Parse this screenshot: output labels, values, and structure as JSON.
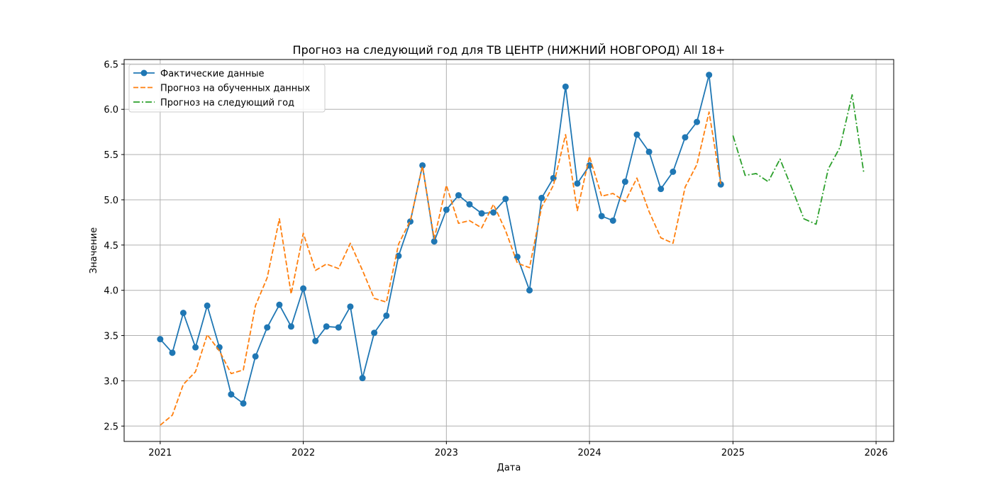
{
  "chart_data": {
    "type": "line",
    "title": "Прогноз на следующий год для ТВ ЦЕНТР (НИЖНИЙ НОВГОРОД) All 18+",
    "xlabel": "Дата",
    "ylabel": "Значение",
    "xlim": [
      "2020-10-01",
      "2026-02-15"
    ],
    "ylim": [
      2.33,
      6.55
    ],
    "x_ticks": [
      "2021-01-01",
      "2022-01-01",
      "2023-01-01",
      "2024-01-01",
      "2025-01-01",
      "2026-01-01"
    ],
    "x_tick_labels": [
      "2021",
      "2022",
      "2023",
      "2024",
      "2025",
      "2026"
    ],
    "y_ticks": [
      2.5,
      3.0,
      3.5,
      4.0,
      4.5,
      5.0,
      5.5,
      6.0,
      6.5
    ],
    "y_tick_labels": [
      "2.5",
      "3.0",
      "3.5",
      "4.0",
      "4.5",
      "5.0",
      "5.5",
      "6.0",
      "6.5"
    ],
    "grid": true,
    "legend_position": "top-left",
    "series": [
      {
        "name": "Фактические данные",
        "color": "#1f77b4",
        "style": "solid-markers",
        "x": [
          "2021-01",
          "2021-02",
          "2021-03",
          "2021-04",
          "2021-05",
          "2021-06",
          "2021-07",
          "2021-08",
          "2021-09",
          "2021-10",
          "2021-11",
          "2021-12",
          "2022-01",
          "2022-02",
          "2022-03",
          "2022-04",
          "2022-05",
          "2022-06",
          "2022-07",
          "2022-08",
          "2022-09",
          "2022-10",
          "2022-11",
          "2022-12",
          "2023-01",
          "2023-02",
          "2023-03",
          "2023-04",
          "2023-05",
          "2023-06",
          "2023-07",
          "2023-08",
          "2023-09",
          "2023-10",
          "2023-11",
          "2023-12",
          "2024-01",
          "2024-02",
          "2024-03",
          "2024-04",
          "2024-05",
          "2024-06",
          "2024-07",
          "2024-08",
          "2024-09",
          "2024-10",
          "2024-11",
          "2024-12"
        ],
        "values": [
          3.46,
          3.31,
          3.75,
          3.37,
          3.83,
          3.37,
          2.85,
          2.75,
          3.27,
          3.59,
          3.84,
          3.6,
          4.02,
          3.44,
          3.6,
          3.59,
          3.82,
          3.03,
          3.53,
          3.72,
          4.38,
          4.76,
          5.38,
          4.54,
          4.89,
          5.05,
          4.95,
          4.85,
          4.86,
          5.01,
          4.37,
          4.0,
          5.02,
          5.24,
          6.25,
          5.18,
          5.38,
          4.82,
          4.77,
          5.2,
          5.72,
          5.53,
          5.12,
          5.31,
          5.69,
          5.86,
          6.38,
          5.17
        ]
      },
      {
        "name": "Прогноз на обученных данных",
        "color": "#ff7f0e",
        "style": "dashed",
        "x": [
          "2021-01",
          "2021-02",
          "2021-03",
          "2021-04",
          "2021-05",
          "2021-06",
          "2021-07",
          "2021-08",
          "2021-09",
          "2021-10",
          "2021-11",
          "2021-12",
          "2022-01",
          "2022-02",
          "2022-03",
          "2022-04",
          "2022-05",
          "2022-06",
          "2022-07",
          "2022-08",
          "2022-09",
          "2022-10",
          "2022-11",
          "2022-12",
          "2023-01",
          "2023-02",
          "2023-03",
          "2023-04",
          "2023-05",
          "2023-06",
          "2023-07",
          "2023-08",
          "2023-09",
          "2023-10",
          "2023-11",
          "2023-12",
          "2024-01",
          "2024-02",
          "2024-03",
          "2024-04",
          "2024-05",
          "2024-06",
          "2024-07",
          "2024-08",
          "2024-09",
          "2024-10",
          "2024-11",
          "2024-12"
        ],
        "values": [
          2.51,
          2.62,
          2.96,
          3.1,
          3.51,
          3.33,
          3.08,
          3.12,
          3.83,
          4.14,
          4.79,
          3.96,
          4.63,
          4.22,
          4.29,
          4.24,
          4.52,
          4.22,
          3.91,
          3.87,
          4.51,
          4.77,
          5.37,
          4.57,
          5.16,
          4.74,
          4.77,
          4.69,
          4.95,
          4.66,
          4.3,
          4.25,
          4.92,
          5.16,
          5.72,
          4.88,
          5.48,
          5.04,
          5.07,
          4.98,
          5.24,
          4.87,
          4.58,
          4.52,
          5.14,
          5.39,
          5.97,
          5.17
        ]
      },
      {
        "name": "Прогноз на следующий год",
        "color": "#2ca02c",
        "style": "dashdot",
        "x": [
          "2025-01",
          "2025-02",
          "2025-03",
          "2025-04",
          "2025-05",
          "2025-06",
          "2025-07",
          "2025-08",
          "2025-09",
          "2025-10",
          "2025-11",
          "2025-12"
        ],
        "values": [
          5.71,
          5.27,
          5.29,
          5.2,
          5.45,
          5.12,
          4.79,
          4.73,
          5.34,
          5.58,
          6.16,
          5.29
        ]
      }
    ]
  }
}
